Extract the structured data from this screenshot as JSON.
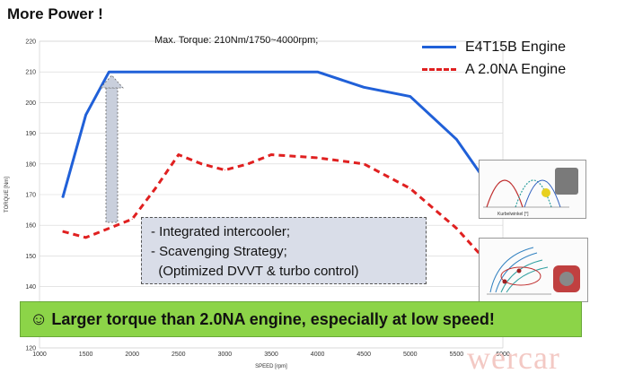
{
  "slide": {
    "title": "More Power !",
    "callout_lines": [
      "-   Integrated intercooler;",
      "-   Scavenging Strategy;",
      "  (Optimized DVVT & turbo control)"
    ],
    "banner_text": "Larger torque than 2.0NA engine, especially at low speed!",
    "watermark": "wercar",
    "thumb1_axis_label": "Kurbelwinkel [°]"
  },
  "colors": {
    "series1": "#2060d8",
    "series2": "#e02020",
    "banner": "#8cd448",
    "callout_bg": "#d9dde8"
  },
  "icons": {
    "banner_icon": "smiley-icon",
    "arrow": "up-arrow-icon"
  },
  "chart_data": {
    "type": "line",
    "title": "Max. Torque: 210Nm/1750~4000rpm;",
    "xlabel": "SPEED [rpm]",
    "ylabel": "TORQUE [Nm]",
    "xlim": [
      1000,
      6000
    ],
    "ylim": [
      120,
      220
    ],
    "xticks": [
      1000,
      1500,
      2000,
      2500,
      3000,
      3500,
      4000,
      4500,
      5000,
      5500,
      6000
    ],
    "yticks": [
      120,
      130,
      140,
      150,
      160,
      170,
      180,
      190,
      200,
      210,
      220
    ],
    "grid": "horizontal",
    "legend_position": "top-right",
    "series": [
      {
        "name": "E4T15B Engine",
        "style": "solid",
        "x": [
          1250,
          1500,
          1750,
          2000,
          2500,
          3000,
          3500,
          4000,
          4500,
          5000,
          5500,
          5800
        ],
        "y": [
          169,
          196,
          210,
          210,
          210,
          210,
          210,
          210,
          205,
          202,
          188,
          175
        ]
      },
      {
        "name": "A 2.0NA Engine",
        "style": "dashed",
        "x": [
          1250,
          1500,
          1750,
          2000,
          2250,
          2500,
          2750,
          3000,
          3250,
          3500,
          4000,
          4500,
          5000,
          5500,
          5800
        ],
        "y": [
          158,
          156,
          159,
          162,
          172,
          183,
          180,
          178,
          180,
          183,
          182,
          180,
          172,
          159,
          149
        ]
      }
    ]
  }
}
